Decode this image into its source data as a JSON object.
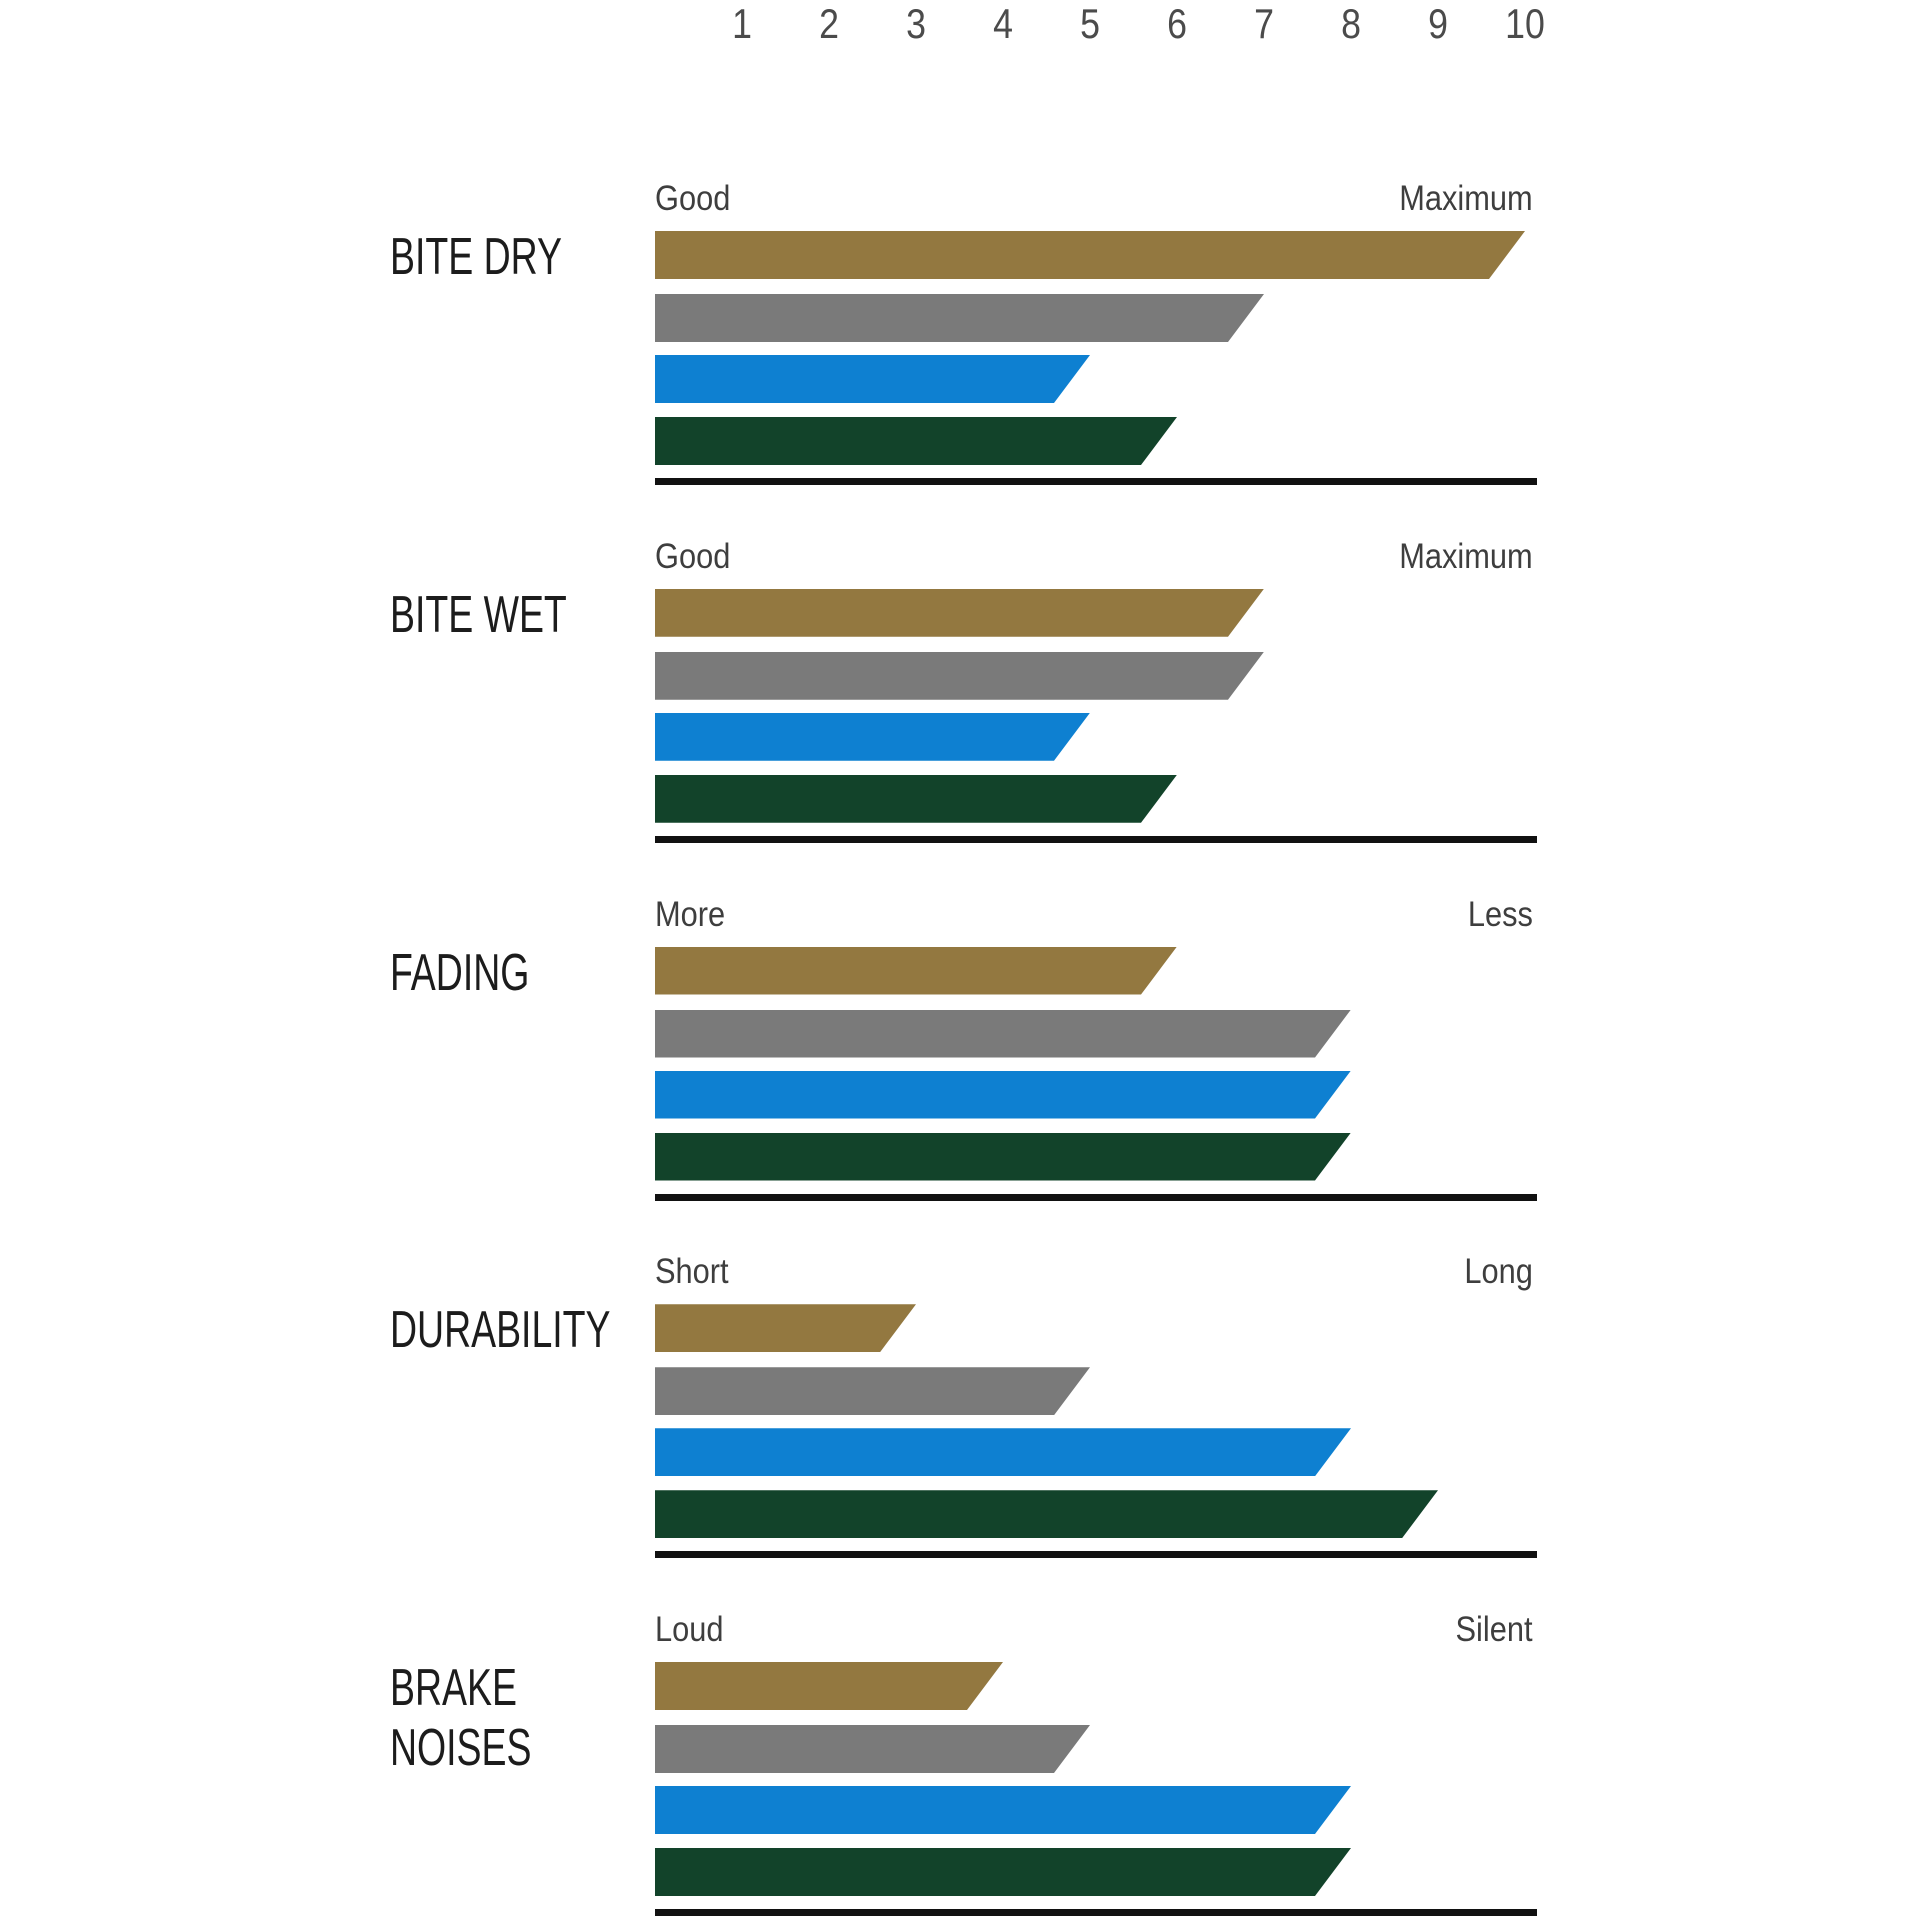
{
  "scale_ticks": [
    "1",
    "2",
    "3",
    "4",
    "5",
    "6",
    "7",
    "8",
    "9",
    "10"
  ],
  "colors": {
    "gold": "#937840",
    "gray": "#7a7a7a",
    "blue": "#0e80d1",
    "green": "#12432a",
    "baseline": "#111111"
  },
  "chart_data": {
    "type": "bar",
    "orientation": "horizontal",
    "x_ticks": [
      1,
      2,
      3,
      4,
      5,
      6,
      7,
      8,
      9,
      10
    ],
    "x_range": [
      0,
      10
    ],
    "series": [
      "gold",
      "gray",
      "blue",
      "green"
    ],
    "legend": "none",
    "groups": [
      {
        "label": "BITE DRY",
        "scale_left": "Good",
        "scale_right": "Maximum",
        "values": [
          10,
          7,
          5,
          6
        ]
      },
      {
        "label": "BITE WET",
        "scale_left": "Good",
        "scale_right": "Maximum",
        "values": [
          7,
          7,
          5,
          6
        ]
      },
      {
        "label": "FADING",
        "scale_left": "More",
        "scale_right": "Less",
        "values": [
          6,
          8,
          8,
          8
        ]
      },
      {
        "label": "DURABILITY",
        "scale_left": "Short",
        "scale_right": "Long",
        "values": [
          3,
          5,
          8,
          9
        ]
      },
      {
        "label": "BRAKE NOISES",
        "scale_left": "Loud",
        "scale_right": "Silent",
        "values": [
          4,
          5,
          8,
          8
        ]
      }
    ]
  }
}
